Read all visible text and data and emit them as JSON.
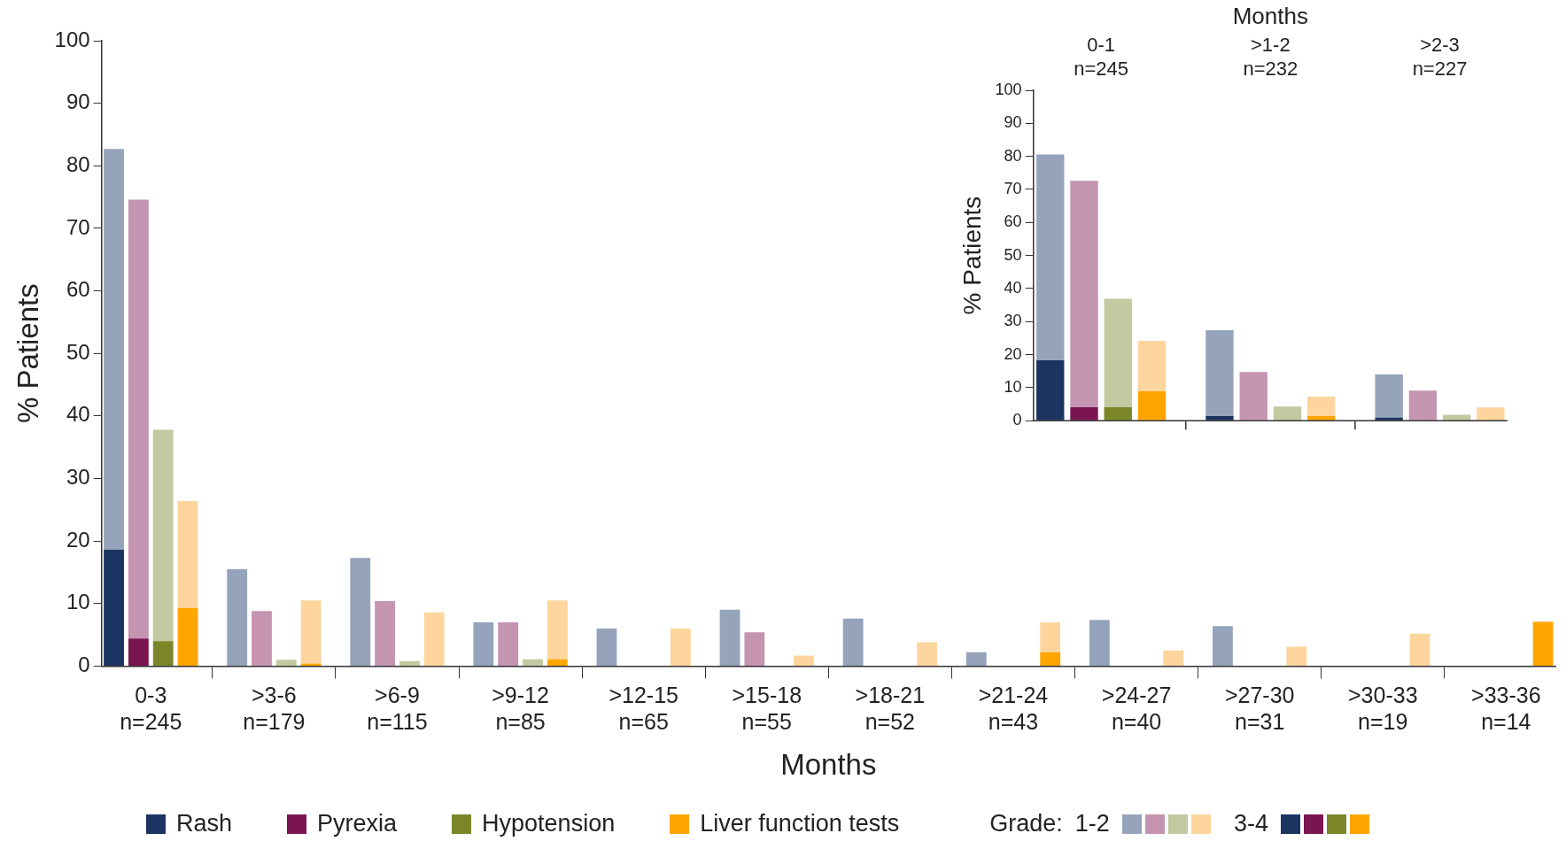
{
  "chart_data": [
    {
      "type": "bar",
      "xlabel": "Months",
      "ylabel": "% Patients",
      "stacked": true,
      "legend": "bottom",
      "legend_title": "Grade:",
      "categories": [
        null,
        "0-3\nn=245",
        null,
        null,
        null,
        null,
        ">3-6\nn=179",
        null,
        null,
        null,
        null,
        ">6-9\nn=115",
        null,
        null,
        null,
        null,
        ">9-12\nn=85",
        null,
        null,
        null,
        null,
        ">12-15\nn=65",
        null,
        null,
        null,
        null,
        ">15-18\nn=55",
        null,
        null,
        null,
        null,
        ">18-21\nn=52",
        null,
        null,
        null,
        null,
        ">21-24\nn=43",
        null,
        null,
        null,
        null,
        ">24-27\nn=40",
        null,
        null,
        null,
        null,
        ">27-30\nn=31",
        null,
        null,
        null,
        null,
        ">30-33\nn=19",
        null,
        null,
        null,
        null,
        ">33-36\nn=14",
        null,
        null
      ],
      "ylim": [
        0,
        100
      ],
      "yticks": [
        0,
        10,
        20,
        30,
        40,
        50,
        60,
        70,
        80,
        90,
        100
      ],
      "annotations": [
        "Rash",
        "Pyrexia",
        "Hypotension",
        "Liver function tests"
      ],
      "series": [
        {
          "name": "3-4",
          "colors": [
            "#1b3461",
            "#7a1552",
            "#7a8628",
            "#ffa500",
            null,
            "#1b3461",
            "#7a1552",
            "#7a8628",
            "#ffa500",
            null,
            "#1b3461",
            "#7a1552",
            "#7a8628",
            "#ffa500",
            null,
            "#1b3461",
            "#7a1552",
            "#7a8628",
            "#ffa500",
            null,
            "#1b3461",
            "#7a1552",
            "#7a8628",
            "#ffa500",
            null,
            "#1b3461",
            "#7a1552",
            "#7a8628",
            "#ffa500",
            null,
            "#1b3461",
            "#7a1552",
            "#7a8628",
            "#ffa500",
            null,
            "#1b3461",
            "#7a1552",
            "#7a8628",
            "#ffa500",
            null,
            "#1b3461",
            "#7a1552",
            "#7a8628",
            "#ffa500",
            null,
            "#1b3461",
            "#7a1552",
            "#7a8628",
            "#ffa500",
            null,
            "#1b3461",
            "#7a1552",
            "#7a8628",
            "#ffa500",
            null,
            "#1b3461",
            "#7a1552",
            "#7a8628",
            "#ffa500"
          ],
          "values": [
            18.6,
            4.4,
            4.0,
            9.3,
            null,
            0,
            0,
            0,
            0.4,
            null,
            0,
            0,
            0,
            0,
            null,
            0,
            0,
            0,
            1.1,
            null,
            0,
            0,
            0,
            0,
            null,
            0,
            0,
            0,
            0,
            null,
            0,
            0,
            0,
            0,
            null,
            0,
            0,
            0,
            2.2,
            null,
            0,
            0,
            0,
            0,
            null,
            0,
            0,
            0,
            0,
            null,
            0,
            0,
            0,
            0,
            null,
            0,
            0,
            0,
            7.1
          ]
        },
        {
          "name": "1-2",
          "colors": [
            "#95a3bb",
            "#c594b1",
            "#c2c8a0",
            "#fdd59d",
            null,
            "#95a3bb",
            "#c594b1",
            "#c2c8a0",
            "#fdd59d",
            null,
            "#95a3bb",
            "#c594b1",
            "#c2c8a0",
            "#fdd59d",
            null,
            "#95a3bb",
            "#c594b1",
            "#c2c8a0",
            "#fdd59d",
            null,
            "#95a3bb",
            "#c594b1",
            "#c2c8a0",
            "#fdd59d",
            null,
            "#95a3bb",
            "#c594b1",
            "#c2c8a0",
            "#fdd59d",
            null,
            "#95a3bb",
            "#c594b1",
            "#c2c8a0",
            "#fdd59d",
            null,
            "#95a3bb",
            "#c594b1",
            "#c2c8a0",
            "#fdd59d",
            null,
            "#95a3bb",
            "#c594b1",
            "#c2c8a0",
            "#fdd59d",
            null,
            "#95a3bb",
            "#c594b1",
            "#c2c8a0",
            "#fdd59d",
            null,
            "#95a3bb",
            "#c594b1",
            "#c2c8a0",
            "#fdd59d",
            null,
            "#95a3bb",
            "#c594b1",
            "#c2c8a0",
            "#fdd59d"
          ],
          "values": [
            64.1,
            70.2,
            33.8,
            17.1,
            null,
            15.5,
            8.8,
            1.0,
            10.1,
            null,
            17.3,
            10.4,
            0.8,
            8.6,
            null,
            7.0,
            7.0,
            1.1,
            9.4,
            null,
            6.0,
            0,
            0,
            6.0,
            null,
            9.0,
            5.4,
            0,
            1.7,
            null,
            7.6,
            0,
            0,
            3.8,
            null,
            2.2,
            0,
            0,
            4.8,
            null,
            7.4,
            0,
            0,
            2.5,
            null,
            6.4,
            0,
            0,
            3.1,
            null,
            0,
            0,
            0,
            5.2,
            null,
            0,
            0,
            0,
            0
          ]
        }
      ]
    },
    {
      "type": "bar",
      "xlabel": "Months",
      "ylabel": "% Patients",
      "stacked": true,
      "categories": [
        null,
        "0-1\nn=245",
        null,
        null,
        null,
        null,
        ">1-2\nn=232",
        null,
        null,
        null,
        null,
        ">2-3\nn=227",
        null,
        null
      ],
      "ylim": [
        0,
        100
      ],
      "yticks": [
        0,
        10,
        20,
        30,
        40,
        50,
        60,
        70,
        80,
        90,
        100
      ],
      "series": [
        {
          "colors": [
            "#1b3461",
            "#7a1552",
            "#7a8628",
            "#ffa500",
            null,
            "#1b3461",
            "#7a1552",
            "#7a8628",
            "#ffa500",
            null,
            "#1b3461",
            "#7a1552",
            "#7a8628",
            "#ffa500"
          ],
          "values": [
            18.3,
            4.1,
            4.1,
            8.9,
            null,
            1.4,
            0,
            0,
            1.4,
            null,
            0.9,
            0,
            0,
            null
          ]
        },
        {
          "colors": [
            "#95a3bb",
            "#c594b1",
            "#c2c8a0",
            "#fdd59d",
            null,
            "#95a3bb",
            "#c594b1",
            "#c2c8a0",
            "#fdd59d",
            null,
            "#95a3bb",
            "#c594b1",
            "#c2c8a0",
            "#fdd59d"
          ],
          "values": [
            62.3,
            68.5,
            32.8,
            15.3,
            null,
            26.0,
            14.7,
            4.3,
            5.9,
            null,
            13.1,
            9.1,
            1.8,
            4.0
          ]
        }
      ]
    }
  ]
}
